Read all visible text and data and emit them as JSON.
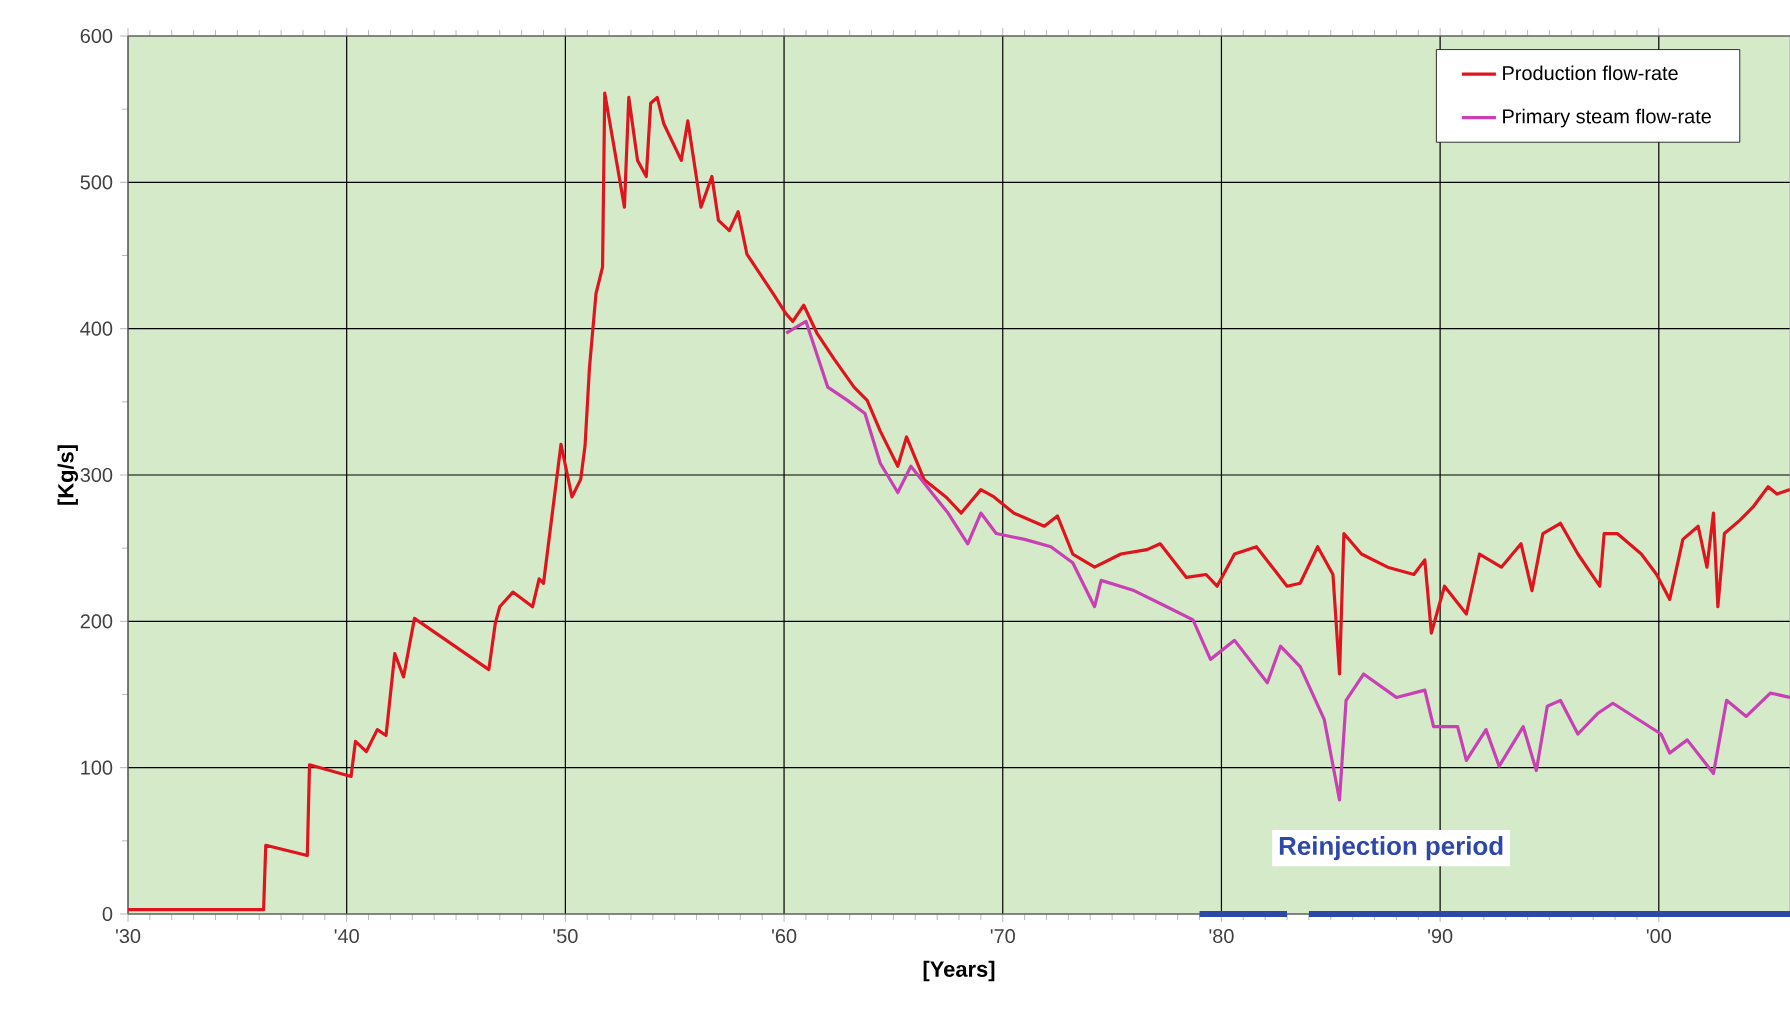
{
  "chart_data": {
    "type": "line",
    "xlabel": "[Years]",
    "ylabel": "[Kg/s]",
    "xlim": [
      1930,
      2006
    ],
    "ylim": [
      0,
      600
    ],
    "xticks": [
      {
        "value": 1930,
        "label": "'30"
      },
      {
        "value": 1940,
        "label": "'40"
      },
      {
        "value": 1950,
        "label": "'50"
      },
      {
        "value": 1960,
        "label": "'60"
      },
      {
        "value": 1970,
        "label": "'70"
      },
      {
        "value": 1980,
        "label": "'80"
      },
      {
        "value": 1990,
        "label": "'90"
      },
      {
        "value": 2000,
        "label": "'00"
      }
    ],
    "yticks": [
      0,
      100,
      200,
      300,
      400,
      500,
      600
    ],
    "grid": true,
    "legend": "top right",
    "marker": "none",
    "line_style": "solid",
    "series": [
      {
        "name": "Production flow-rate",
        "color": "#e0141e",
        "x": [
          1930,
          1936.2,
          1936.3,
          1938.2,
          1938.3,
          1940.2,
          1940.4,
          1940.9,
          1941.4,
          1941.8,
          1942.2,
          1942.6,
          1943.1,
          1946.5,
          1946.8,
          1947.0,
          1947.6,
          1948.5,
          1948.8,
          1949.0,
          1949.8,
          1950.3,
          1950.7,
          1950.9,
          1951.1,
          1951.4,
          1951.7,
          1951.8,
          1952.7,
          1952.9,
          1953.3,
          1953.7,
          1953.9,
          1954.2,
          1954.5,
          1955.3,
          1955.6,
          1956.2,
          1956.7,
          1957.0,
          1957.5,
          1957.9,
          1958.3,
          1959.5,
          1960.1,
          1960.4,
          1960.9,
          1961.5,
          1962.3,
          1963.2,
          1963.8,
          1964.4,
          1965.2,
          1965.6,
          1966.4,
          1967.4,
          1968.1,
          1969.0,
          1969.6,
          1970.5,
          1971.9,
          1972.5,
          1973.2,
          1974.2,
          1975.4,
          1976.6,
          1977.2,
          1978.4,
          1979.3,
          1979.8,
          1980.6,
          1981.6,
          1983.0,
          1983.6,
          1984.4,
          1985.1,
          1985.4,
          1985.6,
          1986.4,
          1987.6,
          1988.8,
          1989.3,
          1989.6,
          1990.2,
          1991.2,
          1991.8,
          1992.8,
          1993.7,
          1994.2,
          1994.7,
          1995.5,
          1996.3,
          1997.3,
          1997.5,
          1998.1,
          1999.2,
          1999.9,
          2000.5,
          2001.1,
          2001.8,
          2002.2,
          2002.5,
          2002.7,
          2003.0,
          2003.7,
          2004.3,
          2005.0,
          2005.4,
          2006.0
        ],
        "values": [
          3,
          3,
          47,
          40,
          102,
          94,
          118,
          111,
          126,
          122,
          178,
          162,
          202,
          167,
          199,
          210,
          220,
          210,
          229,
          226,
          321,
          285,
          297,
          320,
          373,
          424,
          442,
          561,
          483,
          558,
          515,
          504,
          554,
          558,
          540,
          515,
          542,
          483,
          504,
          474,
          467,
          480,
          451,
          424,
          410,
          405,
          416,
          397,
          379,
          360,
          351,
          330,
          306,
          326,
          297,
          285,
          274,
          290,
          285,
          274,
          265,
          272,
          246,
          237,
          246,
          249,
          253,
          230,
          232,
          224,
          246,
          251,
          224,
          226,
          251,
          232,
          164,
          260,
          246,
          237,
          232,
          242,
          192,
          224,
          205,
          246,
          237,
          253,
          221,
          260,
          267,
          246,
          224,
          260,
          260,
          246,
          232,
          215,
          256,
          265,
          237,
          274,
          210,
          260,
          269,
          278,
          292,
          287,
          290
        ]
      },
      {
        "name": "Primary steam flow-rate",
        "color": "#c840b4",
        "x": [
          1960.1,
          1961.0,
          1962.0,
          1962.9,
          1963.7,
          1964.4,
          1965.2,
          1965.8,
          1966.8,
          1967.5,
          1968.4,
          1969.0,
          1969.7,
          1971.0,
          1972.2,
          1973.2,
          1974.2,
          1974.5,
          1976.0,
          1977.5,
          1978.7,
          1979.5,
          1980.6,
          1982.1,
          1982.7,
          1983.6,
          1984.7,
          1985.4,
          1985.7,
          1986.5,
          1988.0,
          1989.3,
          1989.7,
          1990.8,
          1991.2,
          1992.1,
          1992.7,
          1993.8,
          1994.4,
          1994.9,
          1995.5,
          1996.3,
          1997.2,
          1997.9,
          2000.1,
          2000.5,
          2001.3,
          2002.5,
          2003.1,
          2004.0,
          2005.1,
          2006.0
        ],
        "values": [
          397,
          405,
          360,
          351,
          342,
          308,
          288,
          306,
          287,
          274,
          253,
          274,
          260,
          256,
          251,
          240,
          210,
          228,
          221,
          210,
          201,
          174,
          187,
          158,
          183,
          169,
          133,
          78,
          146,
          164,
          148,
          153,
          128,
          128,
          105,
          126,
          101,
          128,
          98,
          142,
          146,
          123,
          137,
          144,
          123,
          110,
          119,
          96,
          146,
          135,
          151,
          148
        ]
      },
      {
        "color": "#2e48a8",
        "x": [
          1979,
          1983
        ],
        "values": [
          0,
          0
        ]
      },
      {
        "color": "#2e48a8",
        "x": [
          1984,
          2006
        ],
        "values": [
          0,
          0
        ]
      }
    ],
    "annotations": [
      "Reinjection period"
    ]
  }
}
